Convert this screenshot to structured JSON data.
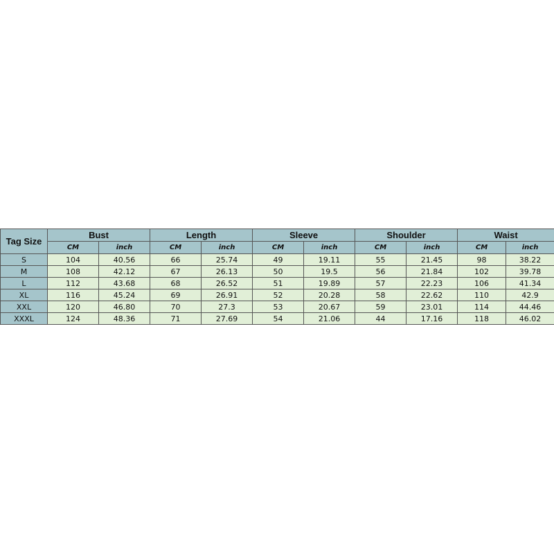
{
  "table": {
    "corner_header": "Tag Size",
    "groups": [
      "Bust",
      "Length",
      "Sleeve",
      "Shoulder",
      "Waist"
    ],
    "units": [
      "CM",
      "inch"
    ],
    "rows": [
      {
        "size": "S",
        "values": [
          "104",
          "40.56",
          "66",
          "25.74",
          "49",
          "19.11",
          "55",
          "21.45",
          "98",
          "38.22"
        ]
      },
      {
        "size": "M",
        "values": [
          "108",
          "42.12",
          "67",
          "26.13",
          "50",
          "19.5",
          "56",
          "21.84",
          "102",
          "39.78"
        ]
      },
      {
        "size": "L",
        "values": [
          "112",
          "43.68",
          "68",
          "26.52",
          "51",
          "19.89",
          "57",
          "22.23",
          "106",
          "41.34"
        ]
      },
      {
        "size": "XL",
        "values": [
          "116",
          "45.24",
          "69",
          "26.91",
          "52",
          "20.28",
          "58",
          "22.62",
          "110",
          "42.9"
        ]
      },
      {
        "size": "XXL",
        "values": [
          "120",
          "46.80",
          "70",
          "27.3",
          "53",
          "20.67",
          "59",
          "23.01",
          "114",
          "44.46"
        ]
      },
      {
        "size": "XXXL",
        "values": [
          "124",
          "48.36",
          "71",
          "27.69",
          "54",
          "21.06",
          "44",
          "17.16",
          "118",
          "46.02"
        ]
      }
    ],
    "colors": {
      "header": "#a5c5cb",
      "cell": "#e1efd7",
      "border": "#555555"
    }
  }
}
